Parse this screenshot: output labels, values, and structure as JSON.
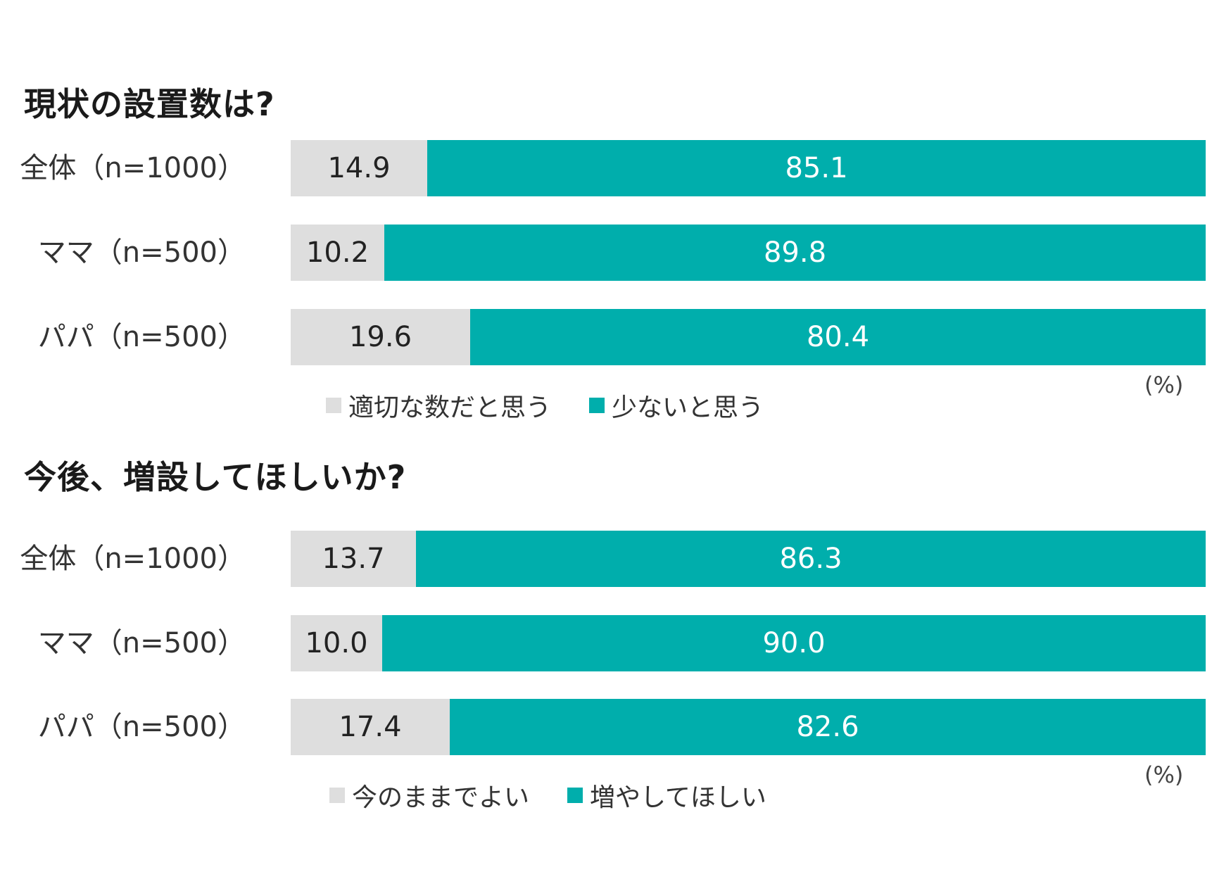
{
  "colors": {
    "seg_a": "#dedede",
    "seg_b": "#00aeac"
  },
  "chart_data": [
    {
      "type": "bar",
      "orientation": "horizontal",
      "stacked": true,
      "title": "現状の設置数は?",
      "unit": "(%)",
      "categories": [
        "全体（n=1000）",
        "ママ（n=500）",
        "パパ（n=500）"
      ],
      "series": [
        {
          "name": "適切な数だと思う",
          "values": [
            14.9,
            10.2,
            19.6
          ],
          "color": "#dedede"
        },
        {
          "name": "少ないと思う",
          "values": [
            85.1,
            89.8,
            80.4
          ],
          "color": "#00aeac"
        }
      ],
      "xlim": [
        0,
        100
      ],
      "grid": false,
      "legend": "bottom"
    },
    {
      "type": "bar",
      "orientation": "horizontal",
      "stacked": true,
      "title": "今後、増設してほしいか?",
      "unit": "(%)",
      "categories": [
        "全体（n=1000）",
        "ママ（n=500）",
        "パパ（n=500）"
      ],
      "series": [
        {
          "name": "今のままでよい",
          "values": [
            13.7,
            10.0,
            17.4
          ],
          "color": "#dedede"
        },
        {
          "name": "増やしてほしい",
          "values": [
            86.3,
            90.0,
            82.6
          ],
          "color": "#00aeac"
        }
      ],
      "xlim": [
        0,
        100
      ],
      "grid": false,
      "legend": "bottom"
    }
  ]
}
